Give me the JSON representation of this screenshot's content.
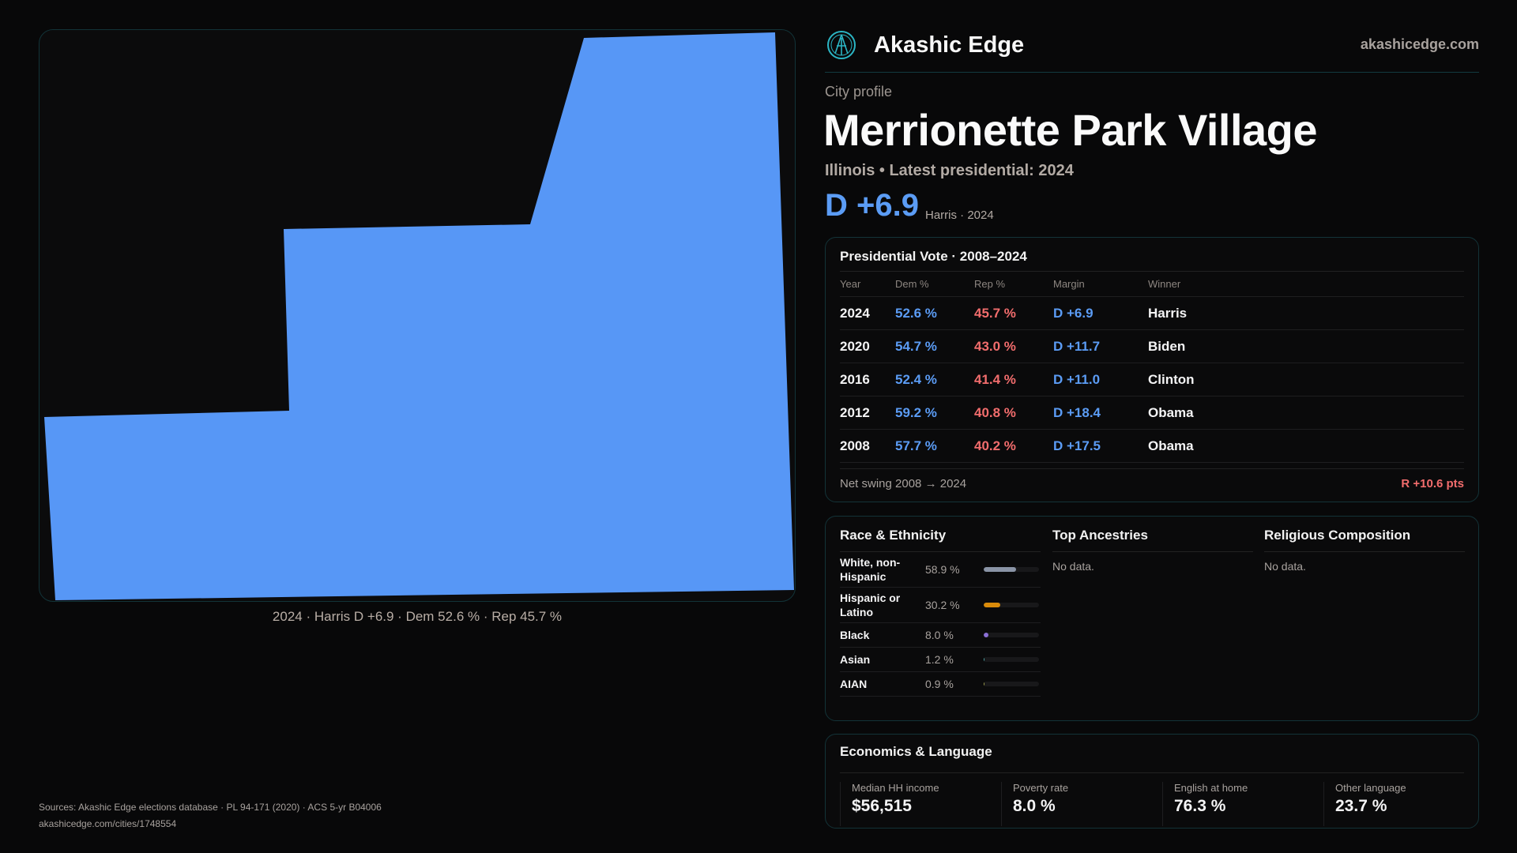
{
  "header": {
    "brand": "Akashic Edge",
    "site": "akashicedge.com",
    "logo_icon": "compass-emblem-icon"
  },
  "profile": {
    "kicker": "City profile",
    "name": "Merrionette Park Village",
    "subtitle": "Illinois • Latest presidential: 2024",
    "margin": "D +6.9",
    "margin_note": "Harris · 2024"
  },
  "map": {
    "caption": "2024 · Harris D +6.9 · Dem 52.6 % · Rep 45.7 %",
    "fill_color": "#5797f6"
  },
  "vote": {
    "title": "Presidential Vote · 2008–2024",
    "headers": [
      "Year",
      "Dem %",
      "Rep %",
      "Margin",
      "Winner"
    ],
    "rows": [
      [
        "2024",
        "52.6 %",
        "45.7 %",
        "D +6.9",
        "Harris"
      ],
      [
        "2020",
        "54.7 %",
        "43.0 %",
        "D +11.7",
        "Biden"
      ],
      [
        "2016",
        "52.4 %",
        "41.4 %",
        "D +11.0",
        "Clinton"
      ],
      [
        "2012",
        "59.2 %",
        "40.8 %",
        "D +18.4",
        "Obama"
      ],
      [
        "2008",
        "57.7 %",
        "40.2 %",
        "D +17.5",
        "Obama"
      ]
    ],
    "swing_label": "Net swing 2008 → 2024",
    "swing_value": "R +10.6 pts"
  },
  "race": {
    "title": "Race & Ethnicity",
    "rows": [
      {
        "label": "White, non-Hispanic",
        "value": "58.9 %",
        "pct": 58.9,
        "color": "#8a94a6"
      },
      {
        "label": "Hispanic or Latino",
        "value": "30.2 %",
        "pct": 30.2,
        "color": "#d98b0a"
      },
      {
        "label": "Black",
        "value": "8.0 %",
        "pct": 8.0,
        "color": "#8b6fd6"
      },
      {
        "label": "Asian",
        "value": "1.2 %",
        "pct": 1.2,
        "color": "#4ea3a3"
      },
      {
        "label": "AIAN",
        "value": "0.9 %",
        "pct": 0.9,
        "color": "#a3a34e"
      }
    ]
  },
  "ancestries": {
    "title": "Top Ancestries",
    "empty": "No data."
  },
  "religion": {
    "title": "Religious Composition",
    "empty": "No data."
  },
  "econ": {
    "title": "Economics & Language",
    "stats": [
      {
        "label": "Median HH income",
        "value": "$56,515"
      },
      {
        "label": "Poverty rate",
        "value": "8.0 %"
      },
      {
        "label": "English at home",
        "value": "76.3 %"
      },
      {
        "label": "Other language",
        "value": "23.7 %"
      }
    ]
  },
  "footer": {
    "sources": "Sources: Akashic Edge elections database · PL 94-171 (2020) · ACS 5-yr B04006",
    "url": "akashicedge.com/cities/1748554"
  },
  "colors": {
    "dem": "#5b9cf5",
    "rep": "#f26d6d",
    "border": "#133338"
  }
}
